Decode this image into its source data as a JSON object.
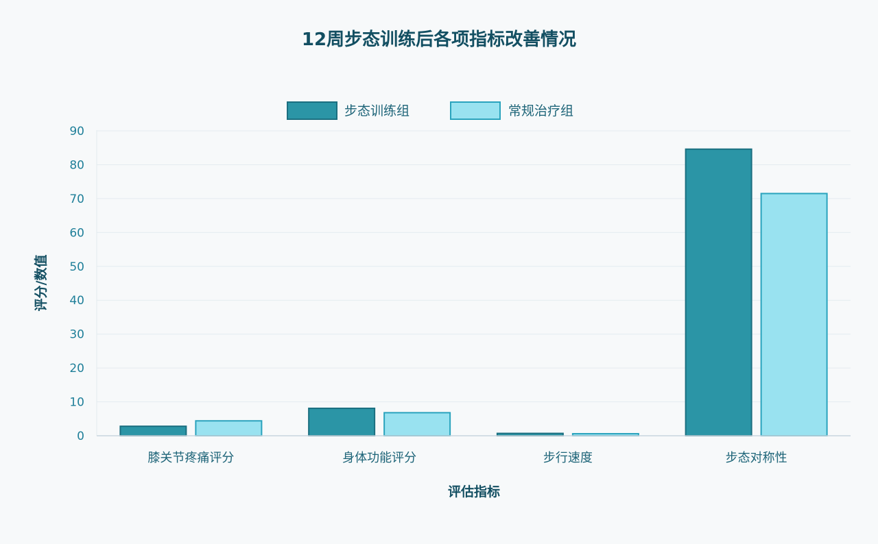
{
  "chart_data": {
    "type": "bar",
    "title": "12周步态训练后各项指标改善情况",
    "xlabel": "评估指标",
    "ylabel": "评分/数值",
    "categories": [
      "膝关节疼痛评分",
      "身体功能评分",
      "步行速度",
      "步态对称性"
    ],
    "series": [
      {
        "name": "步态训练组",
        "values": [
          2.8,
          8.1,
          0.7,
          84.6
        ],
        "color": "#2b95a6",
        "stroke": "#1b6f80"
      },
      {
        "name": "常规治疗组",
        "values": [
          4.4,
          6.8,
          0.6,
          71.5
        ],
        "color": "#99e2f0",
        "stroke": "#2aa3bd"
      }
    ],
    "ylim": [
      0,
      90
    ],
    "yticks": [
      0,
      10,
      20,
      30,
      40,
      50,
      60,
      70,
      80,
      90
    ],
    "grid": true,
    "legend": "top-center"
  }
}
